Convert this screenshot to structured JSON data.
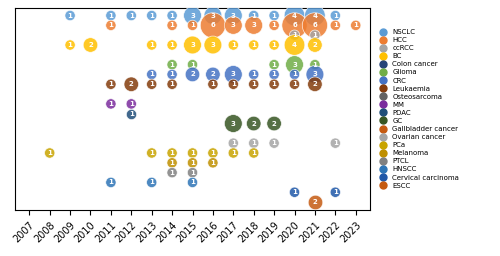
{
  "chart_data": {
    "type": "scatter",
    "xlim": [
      2006.3,
      2023.7
    ],
    "xticks": [
      2007,
      2008,
      2009,
      2010,
      2011,
      2012,
      2013,
      2014,
      2015,
      2016,
      2017,
      2018,
      2019,
      2020,
      2021,
      2022,
      2023
    ],
    "tick_labels": "x",
    "data_labels": true,
    "legend": "center left",
    "series": [
      {
        "name": "NSCLC",
        "color": "#5B9BD5",
        "x": [
          2009,
          2011,
          2012,
          2013,
          2014,
          2015,
          2016,
          2017,
          2018,
          2019,
          2020,
          2021,
          2022
        ],
        "sizes": [
          1,
          1,
          1,
          1,
          1,
          3,
          3,
          3,
          1,
          1,
          4,
          4,
          1
        ]
      },
      {
        "name": "HCC",
        "color": "#ED7D31",
        "x": [
          2011,
          2014,
          2015,
          2016,
          2017,
          2018,
          2019,
          2020,
          2021,
          2022,
          2023
        ],
        "sizes": [
          1,
          1,
          1,
          6,
          3,
          3,
          1,
          6,
          6,
          1,
          1
        ]
      },
      {
        "name": "ccRCC",
        "color": "#A5A5A5",
        "x": [
          2020,
          2021
        ],
        "sizes": [
          1,
          1
        ]
      },
      {
        "name": "BC",
        "color": "#FFC000",
        "x": [
          2009,
          2010,
          2013,
          2014,
          2015,
          2016,
          2017,
          2018,
          2019,
          2020,
          2021
        ],
        "sizes": [
          1,
          2,
          1,
          1,
          3,
          3,
          1,
          1,
          1,
          4,
          2
        ]
      },
      {
        "name": "Colon cancer",
        "color": "#264478",
        "x": [],
        "sizes": []
      },
      {
        "name": "Glioma",
        "color": "#70AD47",
        "x": [
          2014,
          2015,
          2019,
          2020,
          2021
        ],
        "sizes": [
          1,
          1,
          1,
          3,
          1
        ]
      },
      {
        "name": "CRC",
        "color": "#4472C4",
        "x": [
          2013,
          2014,
          2015,
          2016,
          2017,
          2018,
          2019,
          2020,
          2021
        ],
        "sizes": [
          1,
          1,
          2,
          2,
          3,
          1,
          1,
          1,
          3
        ]
      },
      {
        "name": "Leukaemia",
        "color": "#843C0C",
        "x": [
          2011,
          2012,
          2013,
          2014,
          2016,
          2017,
          2018,
          2019,
          2020,
          2021
        ],
        "sizes": [
          1,
          2,
          1,
          1,
          1,
          1,
          1,
          1,
          1,
          2
        ]
      },
      {
        "name": "Osteosarcoma",
        "color": "#636363",
        "x": [],
        "sizes": []
      },
      {
        "name": "MM",
        "color": "#7B2C9E",
        "x": [
          2011,
          2012
        ],
        "sizes": [
          1,
          1
        ]
      },
      {
        "name": "PDAC",
        "color": "#1F4E79",
        "x": [
          2012
        ],
        "sizes": [
          1
        ]
      },
      {
        "name": "GC",
        "color": "#375623",
        "x": [
          2017,
          2018,
          2019
        ],
        "sizes": [
          3,
          2,
          2
        ]
      },
      {
        "name": "Gallbladder cancer",
        "color": "#C55A11",
        "x": [],
        "sizes": []
      },
      {
        "name": "Ovarian cancer",
        "color": "#A5A5A5",
        "x": [
          2017,
          2018,
          2019,
          2022
        ],
        "sizes": [
          1,
          1,
          1,
          1
        ]
      },
      {
        "name": "PCa",
        "color": "#C8A400",
        "x": [
          2008,
          2013,
          2014,
          2015,
          2016,
          2017,
          2018
        ],
        "sizes": [
          1,
          1,
          1,
          1,
          1,
          1,
          1
        ]
      },
      {
        "name": "Melanoma",
        "color": "#BF8F00",
        "x": [
          2014,
          2015,
          2016
        ],
        "sizes": [
          1,
          1,
          1
        ]
      },
      {
        "name": "PTCL",
        "color": "#808080",
        "x": [
          2014,
          2015
        ],
        "sizes": [
          1,
          1
        ]
      },
      {
        "name": "HNSCC",
        "color": "#2E75B6",
        "x": [
          2011,
          2013,
          2015
        ],
        "sizes": [
          1,
          1,
          1
        ]
      },
      {
        "name": "Cervical carcinoma",
        "color": "#2058A8",
        "x": [
          2020,
          2022
        ],
        "sizes": [
          1,
          1
        ]
      },
      {
        "name": "ESCC",
        "color": "#C55A11",
        "x": [
          2021
        ],
        "sizes": [
          2
        ]
      }
    ]
  }
}
